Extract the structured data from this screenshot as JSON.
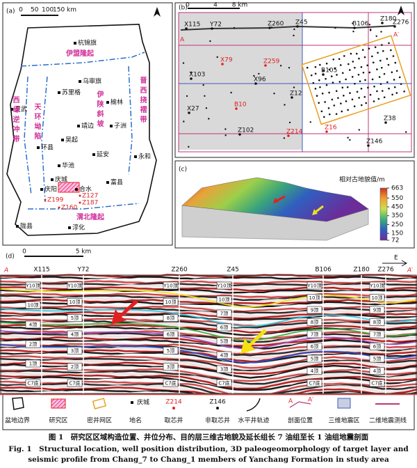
{
  "panel_a": {
    "label": "(a)",
    "scale": [
      "0",
      "50",
      "100",
      "150 km"
    ],
    "places": [
      "杭锦旗",
      "乌审旗",
      "苏里格",
      "榆林",
      "靖边",
      "子洲",
      "吴起",
      "延安",
      "华池",
      "庆城",
      "环县",
      "富县",
      "庆阳",
      "合水",
      "永和",
      "陇县",
      "淳化",
      "灵武"
    ],
    "regions": [
      "伊盟隆起",
      "天环坳陷",
      "西缘逆冲带",
      "伊陕斜坡",
      "晋西挠褶带",
      "渭北隆起"
    ],
    "wells": [
      "Z199",
      "Z127",
      "Z187",
      "Z160"
    ]
  },
  "panel_b": {
    "label": "(b)",
    "scale": [
      "0",
      "4",
      "8 km"
    ],
    "profile_ends": [
      "A",
      "A′"
    ],
    "wells": [
      "X115",
      "Y72",
      "Z260",
      "Z45",
      "B106",
      "Z180",
      "Z276",
      "X79",
      "Z259",
      "X103",
      "X96",
      "Z12",
      "B105",
      "X27",
      "B10",
      "Z102",
      "Z214",
      "Z16",
      "Z38",
      "Z146"
    ]
  },
  "panel_c": {
    "label": "(c)",
    "colorbar_title": "相对古地貌值/m",
    "colorbar_ticks": [
      663,
      550,
      450,
      350,
      250,
      150,
      72
    ]
  },
  "panel_d": {
    "label": "(d)",
    "scale": [
      "0",
      "5 km"
    ],
    "direction": "E",
    "profile_ends": [
      "A",
      "A′"
    ],
    "wells": [
      {
        "name": "X115",
        "horizons": [
          "Y10顶",
          "10顶",
          "4顶",
          "2顶",
          "1顶",
          "C7底"
        ]
      },
      {
        "name": "Y72",
        "horizons": [
          "Y10顶",
          "10顶",
          "5顶",
          "4顶",
          "3顶",
          "2顶",
          "C7底"
        ]
      },
      {
        "name": "Z260",
        "horizons": [
          "Y10顶",
          "10顶",
          "8顶",
          "6顶",
          "5顶",
          "3顶",
          "C7底"
        ]
      },
      {
        "name": "Z45",
        "horizons": [
          "Y10顶",
          "10顶",
          "7顶",
          "6顶",
          "5顶",
          "4顶",
          "3顶",
          "C7底"
        ]
      },
      {
        "name": "B106",
        "horizons": [
          "Y10顶",
          "10顶",
          "9顶",
          "8顶",
          "7顶",
          "6顶",
          "5顶",
          "4顶",
          "C7底"
        ]
      },
      {
        "name": "Z180"
      },
      {
        "name": "Z276",
        "horizons": [
          "Y10顶",
          "10顶",
          "9顶",
          "8顶",
          "7顶",
          "6顶",
          "5顶",
          "4顶",
          "C7底"
        ]
      }
    ]
  },
  "legend": {
    "items": [
      "盆地边界",
      "研究区",
      "密井网区",
      "地名",
      "取芯井",
      "非取芯井",
      "水平井轨迹",
      "剖面位置",
      "三维地震区",
      "二维地震测线"
    ],
    "symbol_texts": [
      "庆城",
      "Z214",
      "Z146",
      "A",
      "A′"
    ]
  },
  "caption": {
    "cn": "图 1　研究区区域构造位置、井位分布、目的层三维古地貌及延长组长 7 油组至长 1 油组地震剖面",
    "en_1": "Fig. 1　Structural location, well position distribution, 3D paleogeomorphology of target layer and",
    "en_2": "seismic profile from Chang_7 to Chang_1 members of Yanchang Formation in study area"
  }
}
